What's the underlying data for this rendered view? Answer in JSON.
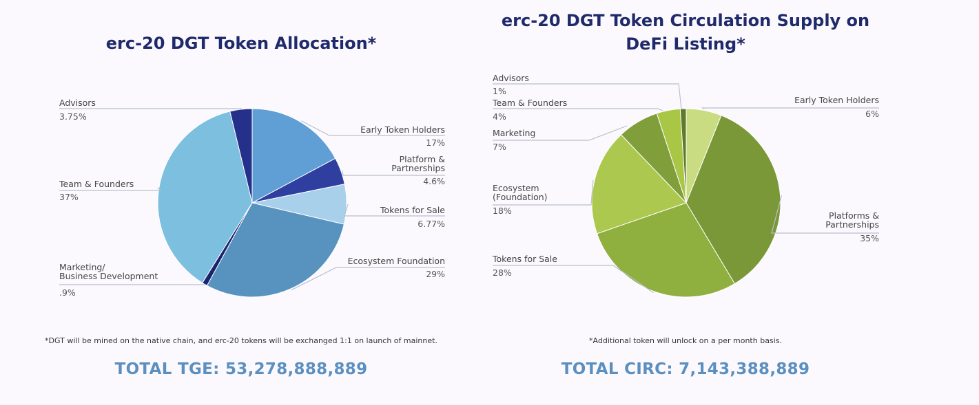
{
  "colors": {
    "title": "#1f2a6b",
    "total": "#5b8fc0",
    "leader": "#b8c0cc"
  },
  "chart_data": [
    {
      "type": "pie",
      "title": "erc-20 DGT Token Allocation*",
      "footnote": "*DGT will be mined on the native chain, and erc-20 tokens will be exchanged 1:1 on launch of mainnet.",
      "total": "TOTAL TGE: 53,278,888,889",
      "slices": [
        {
          "label": "Early Token Holders",
          "label_lines": [
            "Early Token Holders"
          ],
          "value": 17,
          "value_label": "17%",
          "color": "#5f9fd6",
          "side": "right"
        },
        {
          "label": "Platform & Partnerships",
          "label_lines": [
            "Platform &",
            "Partnerships"
          ],
          "value": 4.6,
          "value_label": "4.6%",
          "color": "#2f3fa0",
          "side": "right"
        },
        {
          "label": "Tokens for Sale",
          "label_lines": [
            "Tokens for Sale"
          ],
          "value": 6.77,
          "value_label": "6.77%",
          "color": "#a8d0ea",
          "side": "right"
        },
        {
          "label": "Ecosystem Foundation",
          "label_lines": [
            "Ecosystem Foundation"
          ],
          "value": 29,
          "value_label": "29%",
          "color": "#5893bf",
          "side": "right"
        },
        {
          "label": "Marketing/ Business Development",
          "label_lines": [
            "Marketing/",
            "Business Development"
          ],
          "value": 0.9,
          "value_label": ".9%",
          "color": "#1a2370",
          "side": "left"
        },
        {
          "label": "Team & Founders",
          "label_lines": [
            "Team & Founders"
          ],
          "value": 37,
          "value_label": "37%",
          "color": "#7dbfdf",
          "side": "left"
        },
        {
          "label": "Advisors",
          "label_lines": [
            "Advisors"
          ],
          "value": 3.75,
          "value_label": "3.75%",
          "color": "#25308a",
          "side": "left"
        }
      ]
    },
    {
      "type": "pie",
      "title": "erc-20 DGT Token Circulation Supply on DeFi Listing*",
      "footnote": "*Additional token will unlock on a per month basis.",
      "total": "TOTAL CIRC: 7,143,388,889",
      "slices": [
        {
          "label": "Early Token Holders",
          "label_lines": [
            "Early Token Holders"
          ],
          "value": 6,
          "value_label": "6%",
          "color": "#c9dc82",
          "side": "right"
        },
        {
          "label": "Platforms & Partnerships",
          "label_lines": [
            "Platforms &",
            "Partnerships"
          ],
          "value": 35,
          "value_label": "35%",
          "color": "#7b9838",
          "side": "right"
        },
        {
          "label": "Tokens for Sale",
          "label_lines": [
            "Tokens for Sale"
          ],
          "value": 28,
          "value_label": "28%",
          "color": "#8faf3f",
          "side": "left"
        },
        {
          "label": "Ecosystem (Foundation)",
          "label_lines": [
            "Ecosystem",
            "(Foundation)"
          ],
          "value": 18,
          "value_label": "18%",
          "color": "#adc84e",
          "side": "left"
        },
        {
          "label": "Marketing",
          "label_lines": [
            "Marketing"
          ],
          "value": 7,
          "value_label": "7%",
          "color": "#809f3a",
          "side": "left"
        },
        {
          "label": "Team & Founders",
          "label_lines": [
            "Team & Founders"
          ],
          "value": 4,
          "value_label": "4%",
          "color": "#a9c644",
          "side": "left"
        },
        {
          "label": "Advisors",
          "label_lines": [
            "Advisors"
          ],
          "value": 1,
          "value_label": "1%",
          "color": "#5e7a2a",
          "side": "left"
        }
      ]
    }
  ]
}
